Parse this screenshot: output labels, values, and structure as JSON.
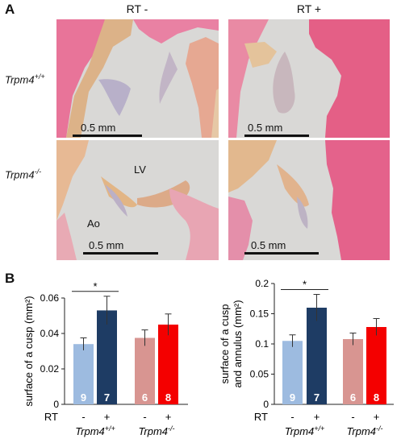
{
  "panel_a": {
    "letter": "A",
    "columns": [
      "RT -",
      "RT +"
    ],
    "rows": [
      {
        "base": "Trpm4",
        "sup": "+/+"
      },
      {
        "base": "Trpm4",
        "sup": "-/-"
      }
    ],
    "scale_bar": "0.5 mm",
    "labels": {
      "lv": "LV",
      "ao": "Ao"
    }
  },
  "panel_b": {
    "letter": "B",
    "rt_label": "RT",
    "rt_marks": [
      "-",
      "+",
      "-",
      "+"
    ],
    "groups": [
      {
        "base": "Trpm4",
        "sup": "+/+"
      },
      {
        "base": "Trpm4",
        "sup": "-/-"
      }
    ],
    "sig_mark": "*"
  },
  "colors": {
    "light_blue": "#9dbbe0",
    "dark_blue": "#1e3c64",
    "light_red": "#d89591",
    "red": "#f40000",
    "tissue_pink": "#e46a8c",
    "tissue_bg": "#d8d8d5"
  },
  "chart_data": [
    {
      "type": "bar",
      "ylabel": "surface of a cusp (mm²)",
      "ylim": [
        0,
        0.06
      ],
      "yticks": [
        0,
        0.02,
        0.04,
        0.06
      ],
      "ytick_labels": [
        "0",
        "0.02",
        "0.04",
        "0.06"
      ],
      "categories": [
        "RT - Trpm4+/+",
        "RT + Trpm4+/+",
        "RT - Trpm4-/-",
        "RT + Trpm4-/-"
      ],
      "values": [
        0.034,
        0.053,
        0.0375,
        0.045
      ],
      "errors": [
        0.0035,
        0.008,
        0.0045,
        0.006
      ],
      "n": [
        "9",
        "7",
        "6",
        "8"
      ],
      "significance": [
        {
          "from": 0,
          "to": 1,
          "mark": "*"
        }
      ]
    },
    {
      "type": "bar",
      "ylabel": "surface of a cusp and annulus (mm²)",
      "ylim": [
        0,
        0.2
      ],
      "yticks": [
        0,
        0.05,
        0.1,
        0.15,
        0.2
      ],
      "ytick_labels": [
        "0",
        "0.05",
        "0.1",
        "0.15",
        "0.2"
      ],
      "categories": [
        "RT - Trpm4+/+",
        "RT + Trpm4+/+",
        "RT - Trpm4-/-",
        "RT + Trpm4-/-"
      ],
      "values": [
        0.105,
        0.16,
        0.108,
        0.128
      ],
      "errors": [
        0.01,
        0.022,
        0.01,
        0.014
      ],
      "n": [
        "9",
        "7",
        "6",
        "8"
      ],
      "significance": [
        {
          "from": 0,
          "to": 1,
          "mark": "*"
        }
      ]
    }
  ]
}
